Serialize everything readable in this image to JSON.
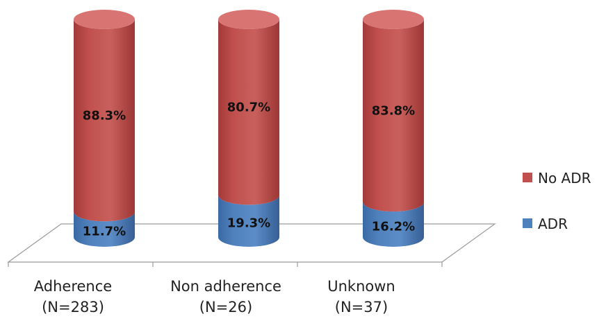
{
  "chart_data": {
    "type": "bar",
    "stacked": true,
    "percent_stacked": true,
    "three_d": true,
    "categories": [
      [
        "Adherence",
        "(N=283)"
      ],
      [
        "Non adherence",
        "(N=26)"
      ],
      [
        "Unknown",
        "(N=37)"
      ]
    ],
    "series": [
      {
        "name": "ADR",
        "values": [
          11.7,
          19.3,
          16.2
        ],
        "labels": [
          "11.7%",
          "19.3%",
          "16.2%"
        ],
        "color": "#4f81bd"
      },
      {
        "name": "No ADR",
        "values": [
          88.3,
          80.7,
          83.8
        ],
        "labels": [
          "88.3%",
          "80.7%",
          "83.8%"
        ],
        "color": "#c0504d"
      }
    ],
    "ylim": [
      0,
      100
    ],
    "legend": {
      "position": "right",
      "order": [
        "No ADR",
        "ADR"
      ]
    },
    "grid": false
  }
}
